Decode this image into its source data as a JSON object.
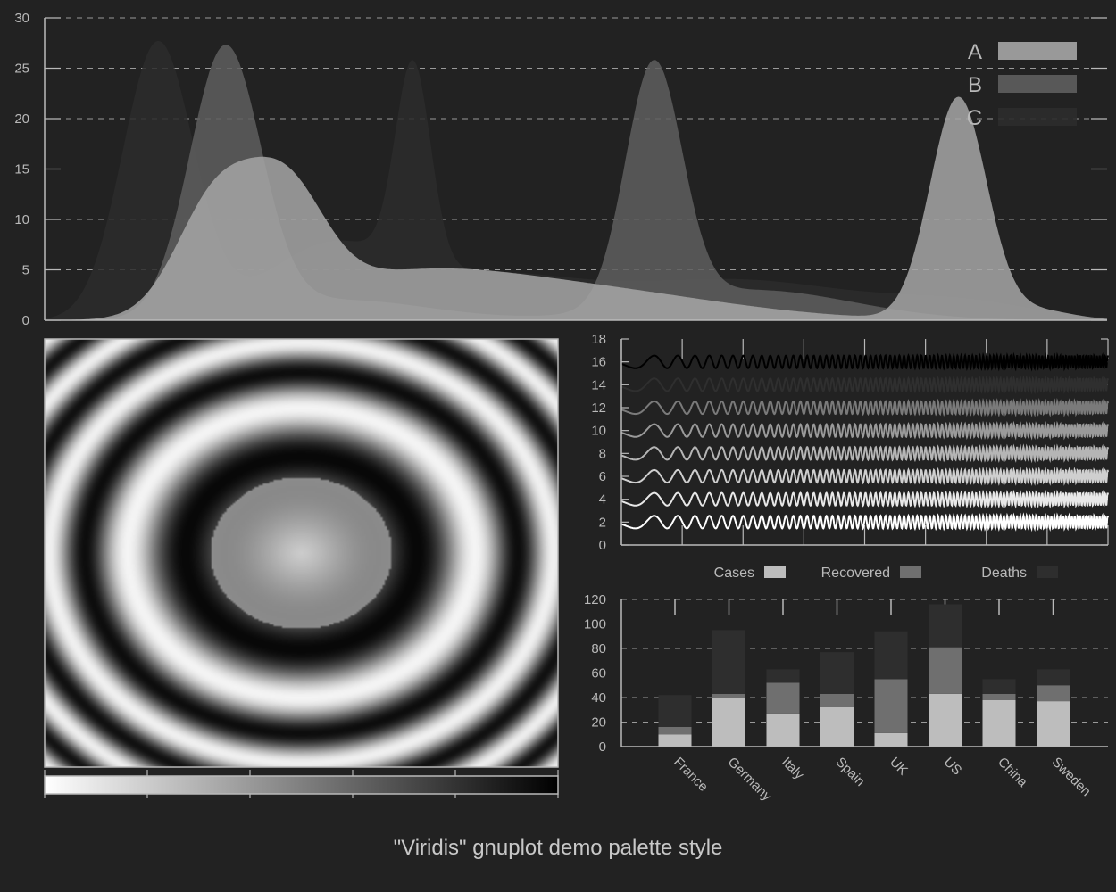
{
  "title": "\"Viridis\" gnuplot demo palette style",
  "colors": {
    "background": "#222222",
    "axis": "#b9b9b9",
    "grid": "#9a9a9a",
    "series_a": "#a6a6a6",
    "series_b": "#5e5e5e",
    "series_c": "#2c2c2c",
    "cases": "#bdbdbd",
    "recovered": "#6f6f6f",
    "deaths": "#2e2e2e"
  },
  "chart_data": [
    {
      "type": "area",
      "x": [
        0,
        300
      ],
      "ylim": [
        0,
        30
      ],
      "yticks": [
        "0",
        "5",
        "10",
        "15",
        "20",
        "25",
        "30"
      ],
      "grid": true,
      "legend_placement": "top-right",
      "series": [
        {
          "name": "A",
          "peaks": [
            {
              "x": 48,
              "amplitude": 11,
              "width": 11
            },
            {
              "x": 68,
              "amplitude": 11,
              "width": 11
            },
            {
              "x": 100,
              "amplitude": 3.5,
              "width": 30
            },
            {
              "x": 150,
              "amplitude": 3,
              "width": 40
            },
            {
              "x": 258,
              "amplitude": 22,
              "width": 8
            },
            {
              "x": 280,
              "amplitude": 1,
              "width": 10
            }
          ]
        },
        {
          "name": "B",
          "peaks": [
            {
              "x": 51,
              "amplitude": 26.5,
              "width": 10
            },
            {
              "x": 84,
              "amplitude": 2,
              "width": 25
            },
            {
              "x": 172,
              "amplitude": 24,
              "width": 8
            },
            {
              "x": 200,
              "amplitude": 3,
              "width": 28
            }
          ]
        },
        {
          "name": "C",
          "peaks": [
            {
              "x": 32,
              "amplitude": 27.5,
              "width": 10
            },
            {
              "x": 80,
              "amplitude": 7,
              "width": 18
            },
            {
              "x": 104,
              "amplitude": 20,
              "width": 5
            },
            {
              "x": 125,
              "amplitude": 4,
              "width": 25
            },
            {
              "x": 195,
              "amplitude": 4,
              "width": 35
            },
            {
              "x": 260,
              "amplitude": 1.5,
              "width": 20
            }
          ]
        }
      ]
    },
    {
      "type": "heatmap",
      "xlim": [
        -10,
        10
      ],
      "ylim": [
        -10,
        10
      ],
      "function": "sin(x*x + y*y) / (x*x + y*y)",
      "palette": "gray",
      "colorbar_placement": "bottom"
    },
    {
      "type": "line",
      "ylim": [
        0,
        18
      ],
      "yticks": [
        "0",
        "2",
        "4",
        "6",
        "8",
        "10",
        "12",
        "14",
        "16",
        "18"
      ],
      "xticks_count": 9,
      "function": "offset + 0.3*sin(x*x)",
      "series": [
        {
          "offset": 2,
          "color": "#ffffff"
        },
        {
          "offset": 4,
          "color": "#e8e8e8"
        },
        {
          "offset": 6,
          "color": "#cfcfcf"
        },
        {
          "offset": 8,
          "color": "#b5b5b5"
        },
        {
          "offset": 10,
          "color": "#9a9a9a"
        },
        {
          "offset": 12,
          "color": "#7a7a7a"
        },
        {
          "offset": 14,
          "color": "#2f2f2f"
        },
        {
          "offset": 16,
          "color": "#000000"
        }
      ]
    },
    {
      "type": "bar",
      "stacked": true,
      "categories": [
        "France",
        "Germany",
        "Italy",
        "Spain",
        "UK",
        "US",
        "China",
        "Sweden"
      ],
      "ylim": [
        0,
        120
      ],
      "yticks": [
        "0",
        "20",
        "40",
        "60",
        "80",
        "100",
        "120"
      ],
      "legend_placement": "top",
      "series": [
        {
          "name": "Cases",
          "values": [
            10,
            40,
            27,
            32,
            11,
            43,
            38,
            37
          ]
        },
        {
          "name": "Recovered",
          "values": [
            6,
            3,
            25,
            11,
            44,
            38,
            5,
            13
          ]
        },
        {
          "name": "Deaths",
          "values": [
            26,
            52,
            11,
            34,
            39,
            35,
            12,
            13
          ]
        }
      ]
    }
  ]
}
